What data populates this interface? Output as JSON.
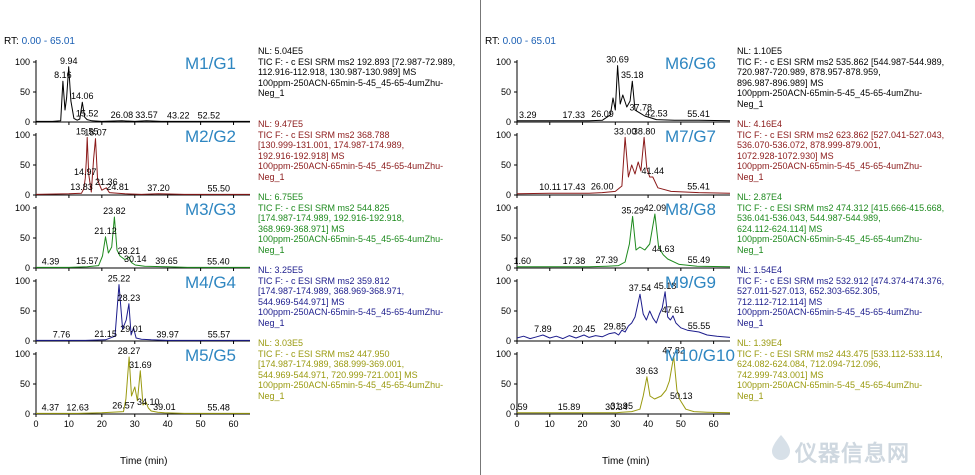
{
  "rt_label": "RT:",
  "left_rt": "0.00 - 65.01",
  "right_rt": "0.00 - 65.01",
  "xlabel": "Time (min)",
  "watermark": "仪器信息网",
  "chart_data": [
    {
      "id": "M1",
      "type": "line",
      "title": "M1/G1",
      "color": "#000000",
      "nl": "NL: 5.04E5",
      "info": "TIC F: - c ESI SRM ms2 192.893 [72.987-72.989,\n112.916-112.918, 130.987-130.989]  MS\n100ppm-250ACN-65min-5-45_45-65-4umZhu-\nNeg_1",
      "ylim": [
        0,
        100
      ],
      "xlim": [
        0,
        65
      ],
      "yticks": [
        0,
        50,
        100
      ],
      "xticks": [
        0,
        10,
        20,
        30,
        40,
        50,
        60
      ],
      "x": [
        0,
        5,
        7.5,
        8.16,
        8.8,
        9.3,
        9.94,
        10.6,
        11.5,
        12.5,
        13.3,
        14.06,
        14.8,
        15.52,
        17,
        20,
        26.08,
        30,
        33.57,
        38,
        43.22,
        48,
        52.52,
        58,
        65
      ],
      "y": [
        1,
        1,
        2,
        68,
        20,
        40,
        92,
        35,
        6,
        3,
        5,
        33,
        8,
        4,
        2,
        1,
        2,
        1,
        2,
        1,
        1,
        1,
        1,
        1,
        1
      ],
      "peaks": [
        {
          "x": 8.16,
          "label": "8.16"
        },
        {
          "x": 9.94,
          "label": "9.94"
        },
        {
          "x": 14.06,
          "label": "14.06"
        },
        {
          "x": 15.52,
          "label": "15.52"
        },
        {
          "x": 26.08,
          "label": "26.08"
        },
        {
          "x": 33.57,
          "label": "33.57"
        },
        {
          "x": 43.22,
          "label": "43.22"
        },
        {
          "x": 52.52,
          "label": "52.52"
        }
      ]
    },
    {
      "id": "M2",
      "type": "line",
      "title": "M2/G2",
      "color": "#8b1a1a",
      "nl": "NL: 9.47E5",
      "info": "TIC F: - c ESI SRM ms2 368.788\n[130.999-131.001, 174.987-174.989,\n192.916-192.918]  MS\n100ppm-250ACN-65min-5-45_45-65-4umZhu-\nNeg_1",
      "ylim": [
        0,
        100
      ],
      "xlim": [
        0,
        65
      ],
      "yticks": [
        0,
        50,
        100
      ],
      "xticks": [
        0,
        10,
        20,
        30,
        40,
        50,
        60
      ],
      "x": [
        0,
        10,
        13.83,
        14.5,
        14.97,
        15.3,
        15.55,
        16,
        16.8,
        17.5,
        18.07,
        18.7,
        20,
        21.36,
        22.3,
        24.81,
        27,
        32,
        37.2,
        45,
        55.5,
        65
      ],
      "y": [
        1,
        2,
        3,
        10,
        28,
        60,
        96,
        35,
        5,
        60,
        94,
        25,
        8,
        12,
        4,
        3,
        2,
        1,
        2,
        1,
        1,
        1
      ],
      "peaks": [
        {
          "x": 13.83,
          "label": "13.83"
        },
        {
          "x": 14.97,
          "label": "14.97"
        },
        {
          "x": 15.55,
          "label": "15.55"
        },
        {
          "x": 18.07,
          "label": "18.07"
        },
        {
          "x": 21.36,
          "label": "21.36"
        },
        {
          "x": 24.81,
          "label": "24.81"
        },
        {
          "x": 37.2,
          "label": "37.20"
        },
        {
          "x": 55.5,
          "label": "55.50"
        }
      ]
    },
    {
      "id": "M3",
      "type": "line",
      "title": "M3/G3",
      "color": "#1e8a1e",
      "nl": "NL: 6.75E5",
      "info": "TIC F: - c ESI SRM ms2 544.825\n[174.987-174.989, 192.916-192.918,\n368.969-368.971]  MS\n100ppm-250ACN-65min-5-45_45-65-4umZhu-\nNeg_1",
      "ylim": [
        0,
        100
      ],
      "xlim": [
        0,
        65
      ],
      "yticks": [
        0,
        50,
        100
      ],
      "xticks": [
        0,
        10,
        20,
        30,
        40,
        50,
        60
      ],
      "x": [
        0,
        4.39,
        10,
        15.57,
        19,
        20.2,
        21.12,
        22,
        23,
        23.82,
        24.6,
        25.5,
        27,
        28.21,
        29,
        30.14,
        33,
        39.65,
        46,
        55.4,
        65
      ],
      "y": [
        1,
        1,
        1,
        2,
        4,
        20,
        52,
        25,
        35,
        85,
        30,
        20,
        14,
        18,
        9,
        5,
        3,
        2,
        1,
        1,
        1
      ],
      "peaks": [
        {
          "x": 4.39,
          "label": "4.39"
        },
        {
          "x": 15.57,
          "label": "15.57"
        },
        {
          "x": 21.12,
          "label": "21.12"
        },
        {
          "x": 23.82,
          "label": "23.82"
        },
        {
          "x": 28.21,
          "label": "28.21"
        },
        {
          "x": 30.14,
          "label": "30.14"
        },
        {
          "x": 39.65,
          "label": "39.65"
        },
        {
          "x": 55.4,
          "label": "55.40"
        }
      ]
    },
    {
      "id": "M4",
      "type": "line",
      "title": "M4/G4",
      "color": "#1c1c8c",
      "nl": "NL: 3.25E5",
      "info": "TIC F: - c ESI SRM ms2 359.812\n[174.987-174.989, 368.969-368.971,\n544.969-544.971]  MS\n100ppm-250ACN-65min-5-45_45-65-4umZhu-\nNeg_1",
      "ylim": [
        0,
        100
      ],
      "xlim": [
        0,
        65
      ],
      "yticks": [
        0,
        50,
        100
      ],
      "xticks": [
        0,
        10,
        20,
        30,
        40,
        50,
        60
      ],
      "x": [
        0,
        7.76,
        15,
        21.15,
        24,
        25.22,
        26.3,
        27.4,
        28.23,
        28.9,
        29.6,
        30.4,
        32,
        35,
        39.97,
        47,
        55.57,
        65
      ],
      "y": [
        1,
        1,
        1,
        2,
        8,
        94,
        20,
        35,
        62,
        10,
        22,
        5,
        3,
        2,
        1,
        1,
        1,
        1
      ],
      "peaks": [
        {
          "x": 7.76,
          "label": "7.76"
        },
        {
          "x": 21.15,
          "label": "21.15"
        },
        {
          "x": 25.22,
          "label": "25.22"
        },
        {
          "x": 28.23,
          "label": "28.23"
        },
        {
          "x": 29.01,
          "label": "29.01"
        },
        {
          "x": 39.97,
          "label": "39.97"
        },
        {
          "x": 55.57,
          "label": "55.57"
        }
      ]
    },
    {
      "id": "M5",
      "type": "line",
      "title": "M5/G5",
      "color": "#9a9a10",
      "nl": "NL: 3.03E5",
      "info": "TIC F: - c ESI SRM ms2 447.950\n[174.987-174.989, 368.999-369.001,\n544.969-544.971, 720.999-721.001]  MS\n100ppm-250ACN-65min-5-45_45-65-4umZhu-\nNeg_1",
      "ylim": [
        0,
        100
      ],
      "xlim": [
        0,
        65
      ],
      "yticks": [
        0,
        50,
        100
      ],
      "xticks": [
        0,
        10,
        20,
        30,
        40,
        50,
        60
      ],
      "x": [
        0,
        4.37,
        12.63,
        20,
        26.57,
        27.3,
        28.27,
        29,
        30,
        30.8,
        31.69,
        32.5,
        33.4,
        34.1,
        35,
        37,
        39.01,
        45,
        55.48,
        65
      ],
      "y": [
        1,
        1,
        1,
        2,
        4,
        25,
        95,
        30,
        45,
        22,
        72,
        15,
        20,
        10,
        5,
        3,
        2,
        1,
        1,
        1
      ],
      "peaks": [
        {
          "x": 4.37,
          "label": "4.37"
        },
        {
          "x": 12.63,
          "label": "12.63"
        },
        {
          "x": 26.57,
          "label": "26.57"
        },
        {
          "x": 28.27,
          "label": "28.27"
        },
        {
          "x": 31.69,
          "label": "31.69"
        },
        {
          "x": 34.1,
          "label": "34.10"
        },
        {
          "x": 39.01,
          "label": "39.01"
        },
        {
          "x": 55.48,
          "label": "55.48"
        }
      ]
    },
    {
      "id": "M6",
      "type": "line",
      "title": "M6/G6",
      "color": "#000000",
      "nl": "NL: 1.10E5",
      "info": "TIC F: - c ESI SRM ms2 535.862 [544.987-544.989,\n720.987-720.989, 878.957-878.959,\n896.987-896.989]  MS\n100ppm-250ACN-65min-5-45_45-65-4umZhu-\nNeg_1",
      "ylim": [
        0,
        100
      ],
      "xlim": [
        0,
        65
      ],
      "yticks": [
        0,
        50,
        100
      ],
      "xticks": [
        0,
        10,
        20,
        30,
        40,
        50,
        60
      ],
      "x": [
        0,
        3.29,
        10,
        17.33,
        22,
        26.09,
        28.5,
        29.3,
        30,
        30.69,
        31.5,
        32.3,
        33.5,
        34.5,
        35.18,
        36,
        37.78,
        39,
        42.53,
        48,
        55.41,
        65
      ],
      "y": [
        2,
        2,
        2,
        2,
        2,
        3,
        12,
        40,
        20,
        94,
        30,
        45,
        25,
        35,
        68,
        20,
        14,
        10,
        4,
        3,
        3,
        2
      ],
      "peaks": [
        {
          "x": 3.29,
          "label": "3.29"
        },
        {
          "x": 17.33,
          "label": "17.33"
        },
        {
          "x": 26.09,
          "label": "26.09"
        },
        {
          "x": 30.69,
          "label": "30.69"
        },
        {
          "x": 35.18,
          "label": "35.18"
        },
        {
          "x": 37.78,
          "label": "37.78"
        },
        {
          "x": 42.53,
          "label": "42.53"
        },
        {
          "x": 55.41,
          "label": "55.41"
        }
      ]
    },
    {
      "id": "M7",
      "type": "line",
      "title": "M7/G7",
      "color": "#8b1a1a",
      "nl": "NL: 4.16E4",
      "info": "TIC F: - c ESI SRM ms2 623.862 [527.041-527.043,\n536.070-536.072, 878.999-879.001,\n1072.928-1072.930]  MS\n100ppm-250ACN-65min-5-45_45-65-4umZhu-\nNeg_1",
      "ylim": [
        0,
        100
      ],
      "xlim": [
        0,
        65
      ],
      "yticks": [
        0,
        50,
        100
      ],
      "xticks": [
        0,
        10,
        20,
        30,
        40,
        50,
        60
      ],
      "x": [
        0,
        10.11,
        17.43,
        22,
        26,
        30,
        32,
        33,
        34,
        35,
        36,
        37,
        37.8,
        38.8,
        39.6,
        40.5,
        41.44,
        43,
        47,
        55.41,
        65
      ],
      "y": [
        2,
        3,
        3,
        3,
        4,
        6,
        15,
        96,
        30,
        50,
        35,
        55,
        40,
        96,
        45,
        30,
        30,
        12,
        6,
        4,
        3
      ],
      "peaks": [
        {
          "x": 10.11,
          "label": "10.11"
        },
        {
          "x": 17.43,
          "label": "17.43"
        },
        {
          "x": 26.0,
          "label": "26.00"
        },
        {
          "x": 33.0,
          "label": "33.00"
        },
        {
          "x": 38.8,
          "label": "38.80"
        },
        {
          "x": 41.44,
          "label": "41.44"
        },
        {
          "x": 55.41,
          "label": "55.41"
        }
      ]
    },
    {
      "id": "M8",
      "type": "line",
      "title": "M8/G8",
      "color": "#1e8a1e",
      "nl": "NL: 2.87E4",
      "info": "TIC F: - c ESI SRM ms2 474.312 [415.666-415.668,\n536.041-536.043, 544.987-544.989,\n624.112-624.114]  MS\n100ppm-250ACN-65min-5-45_45-65-4umZhu-\nNeg_1",
      "ylim": [
        0,
        100
      ],
      "xlim": [
        0,
        65
      ],
      "yticks": [
        0,
        50,
        100
      ],
      "xticks": [
        0,
        10,
        20,
        30,
        40,
        50,
        60
      ],
      "x": [
        0,
        1.6,
        10,
        17.38,
        22,
        27.39,
        31,
        33,
        34.3,
        35.29,
        36.3,
        37.5,
        39,
        40.5,
        42.09,
        43.2,
        44.63,
        46,
        49.49,
        55,
        65
      ],
      "y": [
        2,
        2,
        2,
        2,
        2,
        3,
        4,
        10,
        40,
        86,
        30,
        35,
        30,
        40,
        90,
        35,
        22,
        15,
        6,
        3,
        2
      ],
      "peaks": [
        {
          "x": 1.6,
          "label": "1.60"
        },
        {
          "x": 17.38,
          "label": "17.38"
        },
        {
          "x": 27.39,
          "label": "27.39"
        },
        {
          "x": 35.29,
          "label": "35.29"
        },
        {
          "x": 42.09,
          "label": "42.09"
        },
        {
          "x": 44.63,
          "label": "44.63"
        },
        {
          "x": 55.49,
          "label": "55.49"
        }
      ]
    },
    {
      "id": "M9",
      "type": "line",
      "title": "M9/G9",
      "color": "#1c1c8c",
      "nl": "NL: 1.54E4",
      "info": "TIC F: - c ESI SRM ms2 532.912 [474.374-474.376,\n527.011-527.013, 652.303-652.305,\n712.112-712.114]  MS\n100ppm-250ACN-65min-5-45_45-65-4umZhu-\nNeg_1",
      "ylim": [
        0,
        100
      ],
      "xlim": [
        0,
        65
      ],
      "yticks": [
        0,
        50,
        100
      ],
      "xticks": [
        0,
        10,
        20,
        30,
        40,
        50,
        60
      ],
      "x": [
        0,
        2,
        4,
        6,
        7.89,
        10,
        12,
        14,
        16,
        18,
        20.45,
        22,
        24,
        26,
        28,
        29.85,
        31,
        32,
        33,
        34,
        35,
        36,
        37.54,
        38.5,
        39.5,
        40.5,
        41.5,
        42.5,
        43.5,
        44.3,
        45.18,
        46,
        46.8,
        47.61,
        48.5,
        50,
        52,
        55.55,
        58,
        61,
        65
      ],
      "y": [
        5,
        8,
        4,
        7,
        10,
        5,
        8,
        4,
        9,
        5,
        10,
        6,
        9,
        7,
        12,
        14,
        10,
        18,
        15,
        25,
        30,
        40,
        78,
        45,
        35,
        50,
        38,
        30,
        45,
        55,
        82,
        40,
        35,
        42,
        30,
        22,
        18,
        15,
        10,
        8,
        6
      ],
      "peaks": [
        {
          "x": 7.89,
          "label": "7.89"
        },
        {
          "x": 20.45,
          "label": "20.45"
        },
        {
          "x": 29.85,
          "label": "29.85"
        },
        {
          "x": 37.54,
          "label": "37.54"
        },
        {
          "x": 45.18,
          "label": "45.18"
        },
        {
          "x": 47.61,
          "label": "47.61"
        },
        {
          "x": 55.55,
          "label": "55.55"
        }
      ]
    },
    {
      "id": "M10",
      "type": "line",
      "title": "M10/G10",
      "color": "#9a9a10",
      "nl": "NL: 1.39E4",
      "info": "TIC F: - c ESI SRM ms2 443.475 [533.112-533.114,\n624.082-624.084, 712.094-712.096,\n742.999-743.001]  MS\n100ppm-250ACN-65min-5-45_45-65-4umZhu-\nNeg_1",
      "ylim": [
        0,
        100
      ],
      "xlim": [
        0,
        65
      ],
      "yticks": [
        0,
        50,
        100
      ],
      "xticks": [
        0,
        10,
        20,
        30,
        40,
        50,
        60
      ],
      "x": [
        0,
        0.59,
        8,
        15.89,
        22,
        30.34,
        31.95,
        35,
        37.5,
        38.5,
        39.63,
        40.6,
        42,
        44,
        45.5,
        46.5,
        47.82,
        48.8,
        49.6,
        50.13,
        51.5,
        54,
        58,
        65
      ],
      "y": [
        2,
        2,
        2,
        2,
        2,
        2,
        3,
        4,
        8,
        30,
        62,
        30,
        25,
        30,
        40,
        55,
        96,
        40,
        25,
        20,
        8,
        4,
        3,
        2
      ],
      "peaks": [
        {
          "x": 0.59,
          "label": "0.59"
        },
        {
          "x": 15.89,
          "label": "15.89"
        },
        {
          "x": 30.34,
          "label": "30.34"
        },
        {
          "x": 31.95,
          "label": "31.95"
        },
        {
          "x": 39.63,
          "label": "39.63"
        },
        {
          "x": 47.82,
          "label": "47.82"
        },
        {
          "x": 50.13,
          "label": "50.13"
        }
      ]
    }
  ]
}
